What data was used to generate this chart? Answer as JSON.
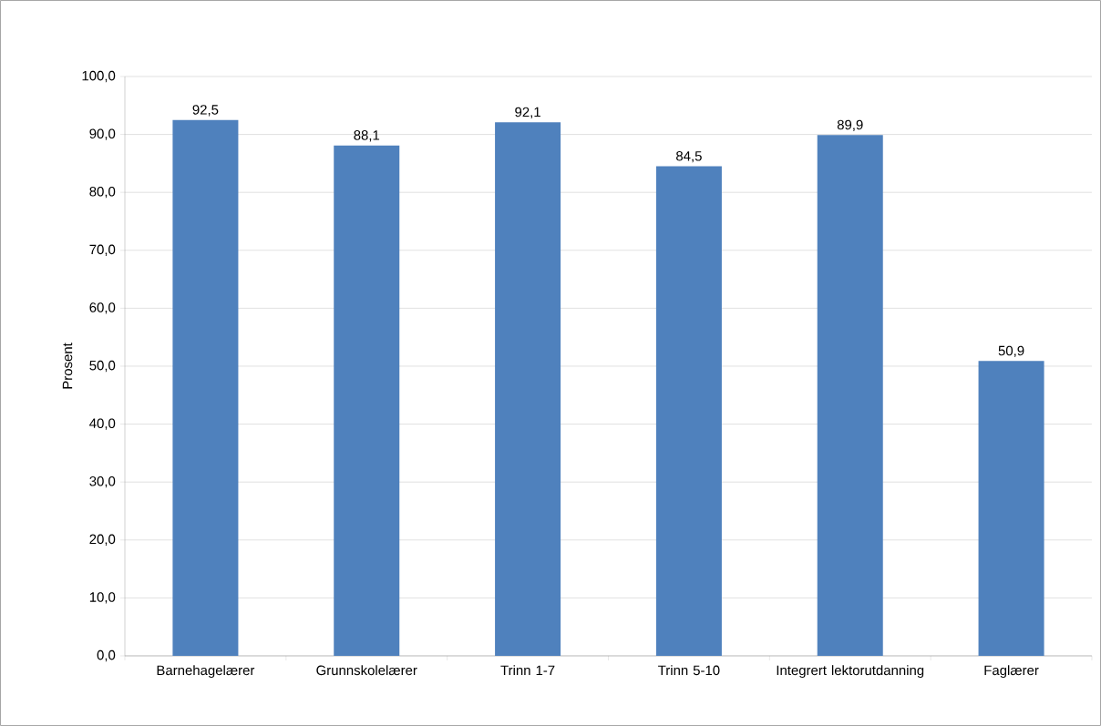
{
  "chart_data": {
    "type": "bar",
    "ylabel": "Prosent",
    "categories": [
      "Barnehagelærer",
      "Grunnskolelærer",
      "Trinn 1-7",
      "Trinn 5-10",
      "Integrert lektorutdanning",
      "Faglærer"
    ],
    "values": [
      92.5,
      88.1,
      92.1,
      84.5,
      89.9,
      50.9
    ],
    "value_labels": [
      "92,5",
      "88,1",
      "92,1",
      "84,5",
      "89,9",
      "50,9"
    ],
    "color": "#4f81bd",
    "ylim": [
      0,
      100
    ],
    "yticks": [
      {
        "value": 0,
        "label": "0,0"
      },
      {
        "value": 10,
        "label": "10,0"
      },
      {
        "value": 20,
        "label": "20,0"
      },
      {
        "value": 30,
        "label": "30,0"
      },
      {
        "value": 40,
        "label": "40,0"
      },
      {
        "value": 50,
        "label": "50,0"
      },
      {
        "value": 60,
        "label": "60,0"
      },
      {
        "value": 70,
        "label": "70,0"
      },
      {
        "value": 80,
        "label": "80,0"
      },
      {
        "value": 90,
        "label": "90,0"
      },
      {
        "value": 100,
        "label": "100,0"
      }
    ],
    "grid": "y"
  }
}
